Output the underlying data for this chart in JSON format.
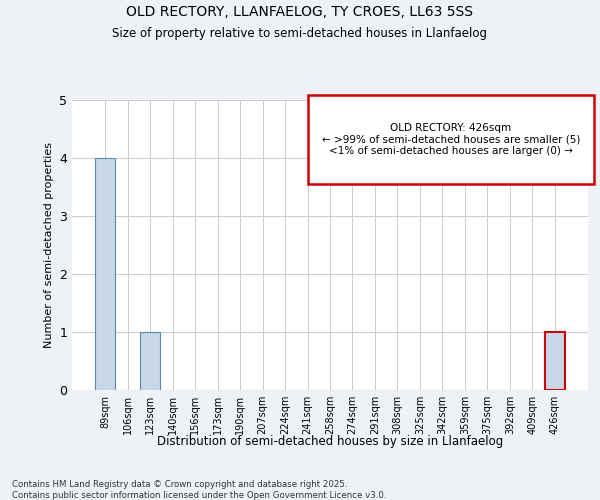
{
  "title_line1": "OLD RECTORY, LLANFAELOG, TY CROES, LL63 5SS",
  "title_line2": "Size of property relative to semi-detached houses in Llanfaelog",
  "xlabel": "Distribution of semi-detached houses by size in Llanfaelog",
  "ylabel": "Number of semi-detached properties",
  "categories": [
    "89sqm",
    "106sqm",
    "123sqm",
    "140sqm",
    "156sqm",
    "173sqm",
    "190sqm",
    "207sqm",
    "224sqm",
    "241sqm",
    "258sqm",
    "274sqm",
    "291sqm",
    "308sqm",
    "325sqm",
    "342sqm",
    "359sqm",
    "375sqm",
    "392sqm",
    "409sqm",
    "426sqm"
  ],
  "values": [
    4,
    0,
    1,
    0,
    0,
    0,
    0,
    0,
    0,
    0,
    0,
    0,
    0,
    0,
    0,
    0,
    0,
    0,
    0,
    0,
    1
  ],
  "bar_color": "#c8d8e8",
  "bar_edge_color": "#5a8ab0",
  "highlight_index": 20,
  "highlight_bar_color": "#c8d8e8",
  "highlight_bar_edge_color": "#cc0000",
  "annotation_box_color": "#cc0000",
  "annotation_title": "OLD RECTORY: 426sqm",
  "annotation_line1": "← >99% of semi-detached houses are smaller (5)",
  "annotation_line2": "<1% of semi-detached houses are larger (0) →",
  "ylim": [
    0,
    5
  ],
  "yticks": [
    0,
    1,
    2,
    3,
    4,
    5
  ],
  "footer_line1": "Contains HM Land Registry data © Crown copyright and database right 2025.",
  "footer_line2": "Contains public sector information licensed under the Open Government Licence v3.0.",
  "bg_color": "#eef2f7",
  "plot_bg_color": "#ffffff",
  "grid_color": "#cccccc"
}
